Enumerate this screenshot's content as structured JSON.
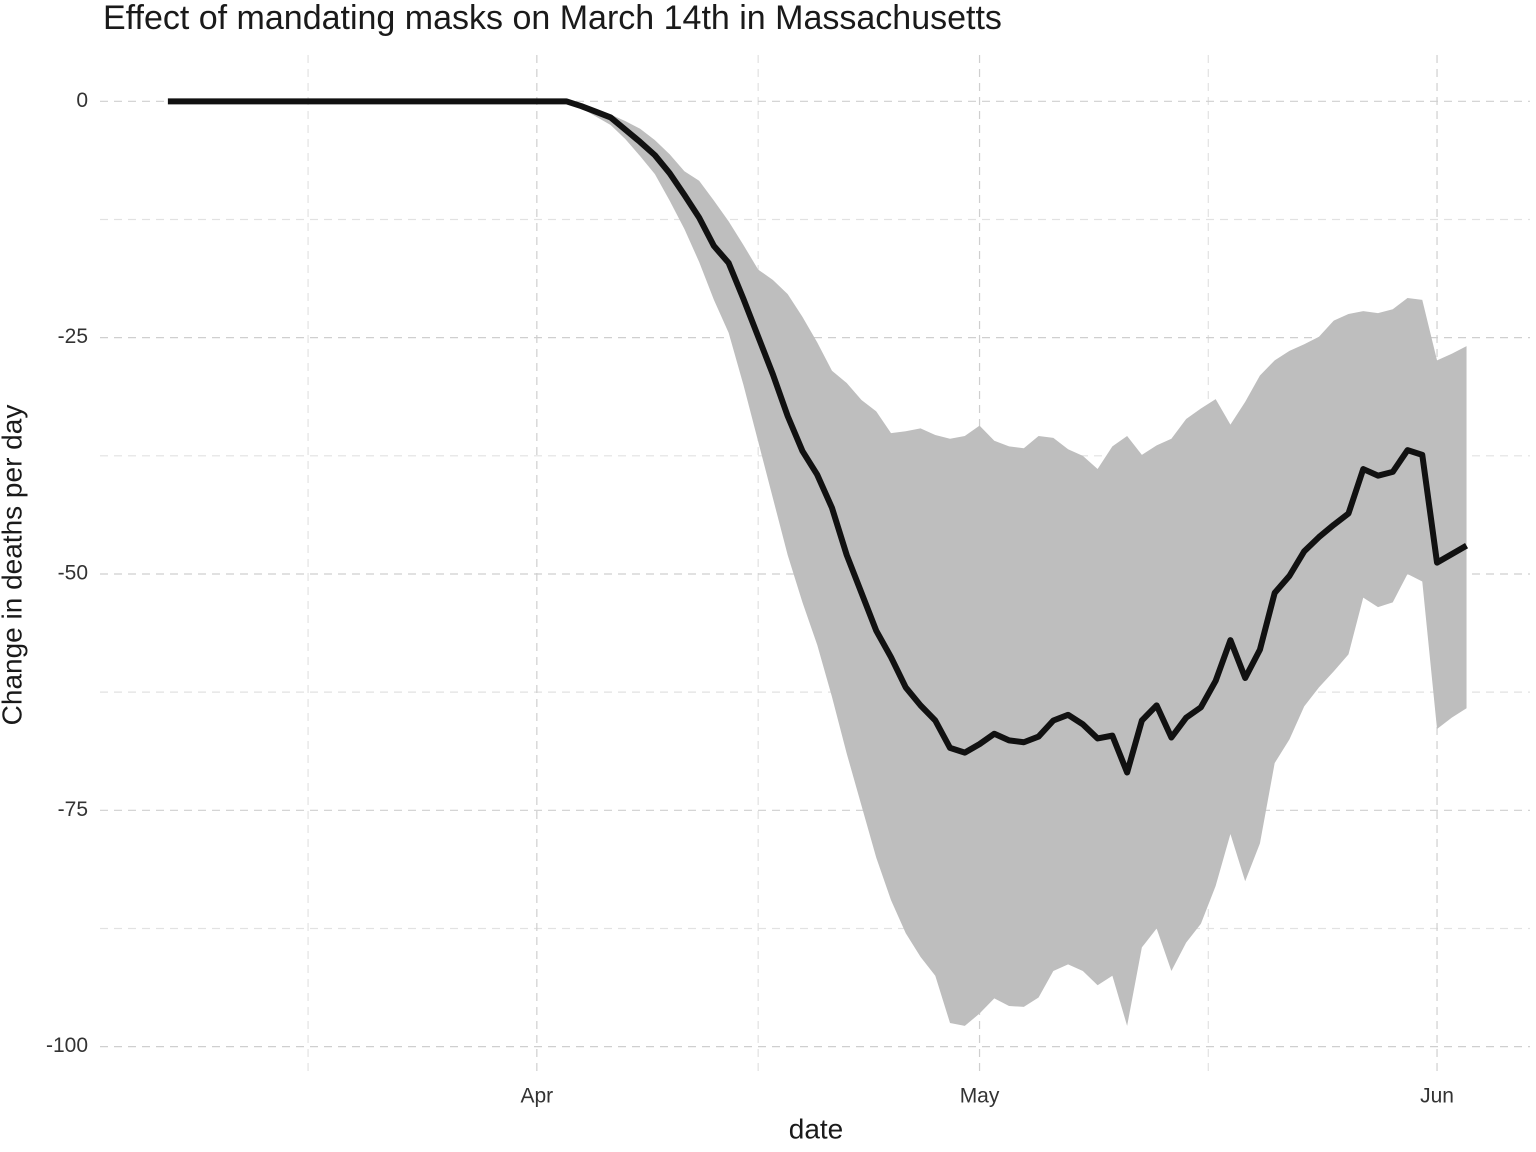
{
  "chart_data": {
    "type": "line",
    "title": "Effect of mandating masks on March 14th in Massachusetts",
    "xlabel": "date",
    "ylabel": "Change in deaths per day",
    "x": [
      -25,
      -24,
      -23,
      -22,
      -21,
      -20,
      -19,
      -18,
      -17,
      -16,
      -15,
      -14,
      -13,
      -12,
      -11,
      -10,
      -9,
      -8,
      -7,
      -6,
      -5,
      -4,
      -3,
      -2,
      -1,
      0,
      1,
      2,
      3,
      4,
      5,
      6,
      7,
      8,
      9,
      10,
      11,
      12,
      13,
      14,
      15,
      16,
      17,
      18,
      19,
      20,
      21,
      22,
      23,
      24,
      25,
      26,
      27,
      28,
      29,
      30,
      31,
      32,
      33,
      34,
      35,
      36,
      37,
      38,
      39,
      40,
      41,
      42,
      43,
      44,
      45,
      46,
      47,
      48,
      49,
      50,
      51,
      52,
      53,
      54,
      55,
      56,
      57,
      58,
      59,
      60,
      61,
      62,
      63
    ],
    "values": [
      0,
      0,
      0,
      0,
      0,
      0,
      0,
      0,
      0,
      0,
      0,
      0,
      0,
      0,
      0,
      0,
      0,
      0,
      0,
      0,
      0,
      0,
      0,
      0,
      0,
      0,
      0,
      0,
      -0.5,
      -1.1,
      -1.7,
      -3.0,
      -4.3,
      -5.7,
      -7.6,
      -9.9,
      -12.3,
      -15.3,
      -17.1,
      -20.9,
      -24.9,
      -28.9,
      -33.3,
      -37.0,
      -39.5,
      -43.0,
      -48.0,
      -52.0,
      -56.0,
      -58.8,
      -62.0,
      -63.9,
      -65.5,
      -68.4,
      -68.9,
      -68.0,
      -66.9,
      -67.6,
      -67.8,
      -67.2,
      -65.5,
      -64.9,
      -65.9,
      -67.4,
      -67.1,
      -71.0,
      -65.5,
      -63.9,
      -67.3,
      -65.2,
      -64.1,
      -61.3,
      -57.0,
      -61.0,
      -58.0,
      -52.0,
      -50.2,
      -47.6,
      -46.1,
      -44.8,
      -43.6,
      -38.9,
      -39.6,
      -39.2,
      -36.9,
      -37.4,
      -48.8,
      -47.9,
      -47.0
    ],
    "upper": [
      0,
      0,
      0,
      0,
      0,
      0,
      0,
      0,
      0,
      0,
      0,
      0,
      0,
      0,
      0,
      0,
      0,
      0,
      0,
      0,
      0,
      0,
      0,
      0,
      0,
      0,
      0,
      0,
      -0.3,
      -0.8,
      -1.4,
      -2.1,
      -2.9,
      -4.1,
      -5.6,
      -7.4,
      -8.4,
      -10.5,
      -12.7,
      -15.2,
      -17.8,
      -18.9,
      -20.4,
      -22.8,
      -25.5,
      -28.5,
      -29.8,
      -31.6,
      -32.8,
      -35.1,
      -34.9,
      -34.6,
      -35.3,
      -35.7,
      -35.4,
      -34.3,
      -35.9,
      -36.5,
      -36.7,
      -35.4,
      -35.6,
      -36.8,
      -37.5,
      -38.9,
      -36.5,
      -35.4,
      -37.4,
      -36.4,
      -35.7,
      -33.6,
      -32.5,
      -31.5,
      -34.2,
      -31.8,
      -29.0,
      -27.4,
      -26.4,
      -25.7,
      -24.9,
      -23.2,
      -22.5,
      -22.2,
      -22.4,
      -22.0,
      -20.8,
      -21.0,
      -27.4,
      -26.7,
      -25.9
    ],
    "lower": [
      0,
      0,
      0,
      0,
      0,
      0,
      0,
      0,
      0,
      0,
      0,
      0,
      0,
      0,
      0,
      0,
      0,
      0,
      0,
      0,
      0,
      0,
      0,
      0,
      0,
      0,
      0,
      0,
      -0.7,
      -1.6,
      -2.5,
      -4.0,
      -5.8,
      -7.7,
      -10.5,
      -13.5,
      -17.0,
      -21.0,
      -24.5,
      -30.0,
      -36.0,
      -42.0,
      -48.0,
      -53.0,
      -57.5,
      -63.0,
      -69.0,
      -74.5,
      -80.0,
      -84.5,
      -88.0,
      -90.5,
      -92.5,
      -97.5,
      -97.8,
      -96.5,
      -94.9,
      -95.7,
      -95.8,
      -94.8,
      -92.0,
      -91.3,
      -92.0,
      -93.5,
      -92.5,
      -97.8,
      -89.5,
      -87.5,
      -92.0,
      -89.0,
      -87.0,
      -83.0,
      -77.5,
      -82.5,
      -78.5,
      -70.0,
      -67.5,
      -64.0,
      -62.0,
      -60.3,
      -58.5,
      -52.5,
      -53.5,
      -53.0,
      -50.0,
      -50.8,
      -66.4,
      -65.2,
      -64.2
    ],
    "color": "#111111",
    "band_color": "#bebebe",
    "xlim": [
      -29.6,
      67.3
    ],
    "ylim": [
      -103,
      4.9
    ],
    "xticks": [
      {
        "value": 0,
        "label": "Apr"
      },
      {
        "value": 30,
        "label": "May"
      },
      {
        "value": 61,
        "label": "Jun"
      }
    ],
    "minor_xticks": [
      -15.5,
      15,
      45.5
    ],
    "yticks": [
      0,
      -25,
      -50,
      -75,
      -100
    ],
    "minor_yticks": [
      -12.5,
      -37.5,
      -62.5,
      -87.5
    ],
    "grid": true
  }
}
